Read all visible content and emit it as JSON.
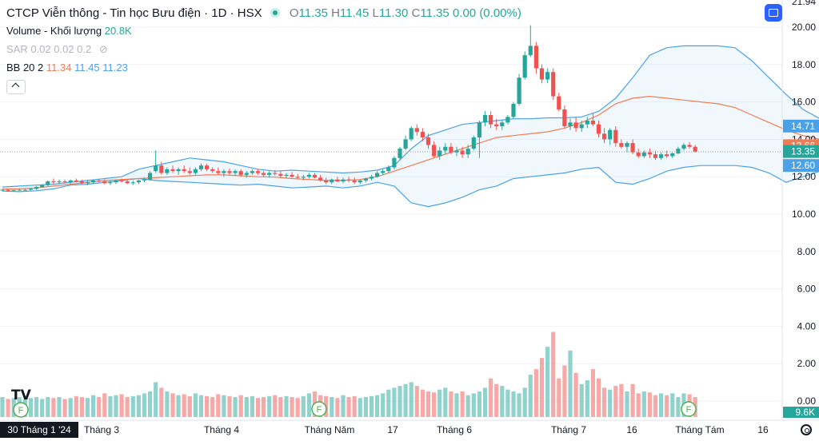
{
  "header": {
    "title": "CTCP Viễn thông - Tin học Bưu điện · 1D · HSX",
    "o_label": "O",
    "o_value": "11.35",
    "h_label": "H",
    "h_value": "11.45",
    "l_label": "L",
    "l_value": "11.30",
    "c_label": "C",
    "c_value": "11.35",
    "change": "0.00 (0.00%)"
  },
  "indicators": {
    "volume_label": "Volume - Khối lượng",
    "volume_value": "20.8K",
    "sar_label": "SAR 0.02 0.02 0.2",
    "bb_label": "BB 20 2",
    "bb_basis": "11.34",
    "bb_upper": "11.45",
    "bb_lower": "11.23"
  },
  "icons": {
    "status": "status-dot-icon",
    "eye_off": "eye-off-icon",
    "collapse": "chevron-up-icon",
    "camera": "snapshot-icon",
    "logo": "tradingview-logo",
    "settings": "gear-icon",
    "event": "financials-event-icon"
  },
  "colors": {
    "up": "#26a69a",
    "down": "#ef5350",
    "bb_band": "#4aa1e8",
    "bb_basis": "#f07c54",
    "accent": "#2962ff"
  },
  "price_axis": {
    "top_partial": "21.94",
    "ticks": [
      "20.00",
      "18.00",
      "16.00",
      "14.00",
      "12.00",
      "10.00",
      "8.00",
      "6.00",
      "4.00",
      "2.00",
      "0.00"
    ]
  },
  "price_labels": [
    {
      "text": "14.71",
      "value": 14.71,
      "color": "#4aa1e8"
    },
    {
      "text": "13.66",
      "value": 13.66,
      "color": "#f07c54"
    },
    {
      "text": "13.35",
      "value": 13.35,
      "color": "#26a69a"
    },
    {
      "text": "12.60",
      "value": 12.6,
      "color": "#4aa1e8"
    }
  ],
  "volume_last_label": "9.6K",
  "time_axis": {
    "current": "30 Tháng 1 '24",
    "labels": [
      "Tháng 3",
      "Tháng 4",
      "Tháng Năm",
      "17",
      "Tháng 6",
      "Tháng 7",
      "16",
      "Tháng Tám",
      "16"
    ]
  },
  "event_letter": "F",
  "chart_data": {
    "type": "candlestick",
    "title": "CTCP Viễn thông - Tin học Bưu điện · 1D · HSX",
    "last_close": 13.35,
    "ylim": [
      0,
      21.94
    ],
    "candles": [
      [
        11.3,
        11.35,
        11.25,
        11.3
      ],
      [
        11.3,
        11.35,
        11.2,
        11.25
      ],
      [
        11.25,
        11.3,
        11.2,
        11.3
      ],
      [
        11.3,
        11.35,
        11.25,
        11.3
      ],
      [
        11.3,
        11.35,
        11.25,
        11.3
      ],
      [
        11.3,
        11.4,
        11.25,
        11.35
      ],
      [
        11.35,
        11.5,
        11.3,
        11.45
      ],
      [
        11.45,
        11.6,
        11.4,
        11.55
      ],
      [
        11.55,
        11.8,
        11.5,
        11.75
      ],
      [
        11.75,
        11.9,
        11.6,
        11.7
      ],
      [
        11.7,
        11.85,
        11.6,
        11.75
      ],
      [
        11.75,
        11.85,
        11.65,
        11.7
      ],
      [
        11.7,
        11.85,
        11.6,
        11.8
      ],
      [
        11.8,
        11.9,
        11.7,
        11.75
      ],
      [
        11.75,
        11.85,
        11.6,
        11.65
      ],
      [
        11.65,
        11.8,
        11.55,
        11.7
      ],
      [
        11.7,
        11.85,
        11.6,
        11.8
      ],
      [
        11.8,
        11.9,
        11.7,
        11.75
      ],
      [
        11.75,
        11.85,
        11.6,
        11.65
      ],
      [
        11.65,
        11.8,
        11.55,
        11.7
      ],
      [
        11.7,
        11.85,
        11.6,
        11.8
      ],
      [
        11.8,
        11.9,
        11.7,
        11.75
      ],
      [
        11.75,
        11.85,
        11.6,
        11.65
      ],
      [
        11.65,
        11.8,
        11.55,
        11.7
      ],
      [
        11.7,
        11.85,
        11.6,
        11.8
      ],
      [
        11.8,
        11.95,
        11.7,
        11.85
      ],
      [
        11.85,
        12.3,
        11.8,
        12.2
      ],
      [
        12.3,
        13.4,
        12.2,
        12.6
      ],
      [
        12.6,
        12.8,
        12.1,
        12.2
      ],
      [
        12.2,
        12.5,
        12.1,
        12.4
      ],
      [
        12.4,
        12.6,
        12.2,
        12.3
      ],
      [
        12.3,
        12.5,
        12.1,
        12.4
      ],
      [
        12.4,
        12.6,
        12.2,
        12.3
      ],
      [
        12.3,
        12.5,
        12.1,
        12.2
      ],
      [
        12.2,
        12.5,
        12.1,
        12.4
      ],
      [
        12.4,
        12.7,
        12.3,
        12.6
      ],
      [
        12.6,
        12.7,
        12.3,
        12.4
      ],
      [
        12.4,
        12.5,
        12.2,
        12.3
      ],
      [
        12.3,
        12.5,
        12.1,
        12.2
      ],
      [
        12.2,
        12.4,
        12.0,
        12.3
      ],
      [
        12.3,
        12.45,
        12.1,
        12.2
      ],
      [
        12.2,
        12.4,
        12.05,
        12.3
      ],
      [
        12.3,
        12.4,
        12.0,
        12.1
      ],
      [
        12.1,
        12.3,
        11.95,
        12.2
      ],
      [
        12.2,
        12.4,
        12.1,
        12.3
      ],
      [
        12.3,
        12.4,
        12.1,
        12.2
      ],
      [
        12.2,
        12.3,
        12.0,
        12.1
      ],
      [
        12.1,
        12.3,
        11.95,
        12.2
      ],
      [
        12.2,
        12.35,
        12.05,
        12.15
      ],
      [
        12.15,
        12.3,
        11.95,
        12.05
      ],
      [
        12.05,
        12.2,
        11.9,
        12.1
      ],
      [
        12.1,
        12.25,
        11.95,
        12.0
      ],
      [
        12.0,
        12.15,
        11.85,
        11.95
      ],
      [
        11.95,
        12.1,
        11.8,
        12.0
      ],
      [
        12.0,
        12.2,
        11.9,
        12.1
      ],
      [
        12.1,
        12.2,
        11.9,
        11.95
      ],
      [
        11.95,
        12.1,
        11.75,
        11.8
      ],
      [
        11.8,
        11.95,
        11.6,
        11.7
      ],
      [
        11.7,
        11.9,
        11.6,
        11.85
      ],
      [
        11.85,
        12.0,
        11.7,
        11.75
      ],
      [
        11.75,
        11.95,
        11.65,
        11.85
      ],
      [
        11.85,
        12.0,
        11.7,
        11.8
      ],
      [
        11.8,
        11.95,
        11.6,
        11.7
      ],
      [
        11.7,
        11.85,
        11.6,
        11.8
      ],
      [
        11.8,
        11.95,
        11.7,
        11.9
      ],
      [
        11.9,
        12.1,
        11.8,
        12.0
      ],
      [
        12.0,
        12.3,
        11.95,
        12.2
      ],
      [
        12.2,
        12.4,
        12.1,
        12.3
      ],
      [
        12.3,
        12.6,
        12.2,
        12.5
      ],
      [
        12.5,
        13.1,
        12.4,
        13.0
      ],
      [
        13.0,
        13.6,
        12.9,
        13.5
      ],
      [
        13.5,
        14.2,
        13.4,
        14.0
      ],
      [
        14.0,
        14.7,
        13.9,
        14.6
      ],
      [
        14.6,
        14.8,
        14.2,
        14.4
      ],
      [
        14.4,
        14.6,
        13.9,
        14.1
      ],
      [
        14.1,
        14.3,
        13.5,
        13.7
      ],
      [
        13.7,
        13.9,
        13.0,
        13.1
      ],
      [
        13.1,
        13.6,
        12.9,
        13.4
      ],
      [
        13.4,
        13.8,
        13.2,
        13.6
      ],
      [
        13.6,
        13.8,
        13.2,
        13.3
      ],
      [
        13.3,
        13.6,
        13.1,
        13.4
      ],
      [
        13.4,
        13.6,
        13.0,
        13.2
      ],
      [
        13.2,
        13.7,
        13.0,
        13.5
      ],
      [
        13.5,
        14.2,
        13.4,
        14.1
      ],
      [
        14.1,
        15.0,
        13.0,
        14.9
      ],
      [
        14.9,
        15.5,
        14.7,
        15.3
      ],
      [
        15.3,
        15.5,
        14.6,
        14.8
      ],
      [
        14.8,
        15.1,
        14.5,
        14.7
      ],
      [
        14.7,
        15.0,
        14.5,
        14.9
      ],
      [
        14.9,
        15.3,
        14.8,
        15.2
      ],
      [
        15.2,
        16.0,
        15.1,
        15.9
      ],
      [
        15.9,
        17.5,
        15.8,
        17.3
      ],
      [
        17.3,
        18.7,
        17.2,
        18.5
      ],
      [
        18.5,
        20.1,
        18.4,
        19.0
      ],
      [
        19.0,
        19.2,
        17.5,
        17.8
      ],
      [
        17.8,
        18.0,
        17.0,
        17.2
      ],
      [
        17.2,
        17.8,
        17.0,
        17.6
      ],
      [
        17.6,
        17.8,
        16.1,
        16.3
      ],
      [
        16.3,
        16.5,
        15.5,
        15.6
      ],
      [
        15.6,
        15.8,
        14.6,
        14.7
      ],
      [
        14.7,
        15.1,
        14.5,
        14.9
      ],
      [
        14.9,
        15.2,
        14.4,
        14.6
      ],
      [
        14.6,
        15.0,
        14.4,
        14.8
      ],
      [
        14.8,
        15.2,
        14.6,
        15.0
      ],
      [
        15.0,
        15.4,
        14.7,
        14.8
      ],
      [
        14.8,
        15.0,
        14.1,
        14.3
      ],
      [
        14.3,
        14.6,
        13.8,
        14.0
      ],
      [
        14.0,
        14.6,
        13.7,
        14.5
      ],
      [
        14.5,
        14.7,
        13.6,
        13.8
      ],
      [
        13.8,
        14.0,
        13.5,
        13.6
      ],
      [
        13.6,
        13.9,
        13.3,
        13.8
      ],
      [
        13.8,
        14.0,
        13.2,
        13.3
      ],
      [
        13.3,
        13.5,
        13.0,
        13.1
      ],
      [
        13.1,
        13.4,
        13.0,
        13.3
      ],
      [
        13.3,
        13.5,
        13.0,
        13.2
      ],
      [
        13.2,
        13.4,
        12.9,
        13.0
      ],
      [
        13.0,
        13.3,
        12.9,
        13.2
      ],
      [
        13.2,
        13.4,
        13.0,
        13.1
      ],
      [
        13.1,
        13.3,
        13.0,
        13.25
      ],
      [
        13.25,
        13.6,
        13.2,
        13.5
      ],
      [
        13.5,
        13.8,
        13.4,
        13.7
      ],
      [
        13.7,
        13.85,
        13.5,
        13.6
      ],
      [
        13.6,
        13.7,
        13.3,
        13.35
      ]
    ],
    "volumes": [
      0.3,
      0.2,
      0.25,
      0.3,
      0.2,
      0.25,
      0.3,
      0.2,
      0.3,
      0.25,
      0.3,
      0.2,
      0.25,
      0.35,
      0.3,
      0.25,
      0.4,
      0.3,
      0.5,
      0.35,
      0.4,
      0.45,
      0.3,
      0.35,
      0.4,
      0.5,
      0.6,
      1.1,
      0.8,
      0.6,
      0.5,
      0.4,
      0.45,
      0.35,
      0.5,
      0.4,
      0.35,
      0.3,
      0.45,
      0.4,
      0.35,
      0.3,
      0.4,
      0.3,
      0.35,
      0.25,
      0.3,
      0.35,
      0.4,
      0.3,
      0.35,
      0.3,
      0.25,
      0.35,
      0.5,
      0.6,
      0.4,
      0.35,
      0.3,
      0.25,
      0.4,
      0.3,
      0.35,
      0.25,
      0.3,
      0.35,
      0.4,
      0.5,
      0.7,
      0.8,
      0.9,
      1.0,
      1.1,
      0.9,
      0.7,
      0.6,
      0.55,
      0.7,
      0.8,
      0.6,
      0.5,
      0.6,
      0.4,
      0.5,
      0.6,
      0.8,
      1.3,
      1.0,
      0.9,
      0.7,
      0.6,
      0.5,
      0.8,
      1.5,
      1.8,
      2.4,
      3.0,
      3.8,
      1.3,
      2.0,
      2.8,
      1.6,
      1.0,
      1.2,
      1.8,
      1.3,
      0.8,
      0.7,
      0.9,
      1.0,
      0.6,
      1.0,
      0.5,
      0.6,
      0.55,
      0.4,
      0.5,
      0.4,
      0.5,
      0.3,
      0.5,
      0.45,
      0.3
    ],
    "bb_upper": [
      11.45,
      11.5,
      11.55,
      11.6,
      11.7,
      11.8,
      11.9,
      12.0,
      12.4,
      12.6,
      12.8,
      13.0,
      12.9,
      12.8,
      12.6,
      12.4,
      12.3,
      12.35,
      12.3,
      12.25,
      12.2,
      12.25,
      12.35,
      12.6,
      13.5,
      14.2,
      14.5,
      14.8,
      14.9,
      15.0,
      15.1,
      15.1,
      15.15,
      15.15,
      15.2,
      15.5,
      16.2,
      17.3,
      18.5,
      18.9,
      19.0,
      19.0,
      19.0,
      18.9,
      18.2,
      17.3,
      16.4,
      15.6,
      15.1,
      14.95,
      14.71
    ],
    "bb_lower": [
      11.23,
      11.2,
      11.25,
      11.35,
      11.55,
      11.6,
      11.7,
      11.8,
      11.9,
      11.8,
      11.75,
      11.7,
      11.65,
      11.6,
      11.55,
      11.6,
      11.5,
      11.4,
      11.45,
      11.5,
      11.4,
      11.5,
      11.7,
      11.5,
      10.6,
      10.4,
      10.6,
      10.9,
      11.3,
      11.5,
      11.9,
      12.0,
      12.1,
      12.2,
      12.4,
      12.5,
      11.7,
      11.6,
      11.9,
      12.3,
      12.5,
      12.6,
      12.6,
      12.6,
      12.5,
      12.2,
      11.7,
      12.0,
      12.3,
      12.5,
      12.6
    ],
    "bb_basis": [
      11.34,
      11.35,
      11.4,
      11.5,
      11.6,
      11.7,
      11.8,
      11.85,
      11.9,
      11.95,
      12.0,
      12.05,
      12.1,
      12.1,
      12.05,
      12.0,
      11.98,
      11.9,
      11.85,
      11.8,
      11.8,
      11.85,
      12.0,
      12.3,
      12.6,
      12.9,
      13.2,
      13.5,
      13.8,
      14.1,
      14.2,
      14.3,
      14.4,
      14.6,
      14.9,
      15.3,
      15.9,
      16.2,
      16.3,
      16.2,
      16.1,
      16.0,
      15.9,
      15.7,
      15.3,
      14.9,
      14.5,
      14.2,
      14.0,
      13.8,
      13.66
    ]
  }
}
